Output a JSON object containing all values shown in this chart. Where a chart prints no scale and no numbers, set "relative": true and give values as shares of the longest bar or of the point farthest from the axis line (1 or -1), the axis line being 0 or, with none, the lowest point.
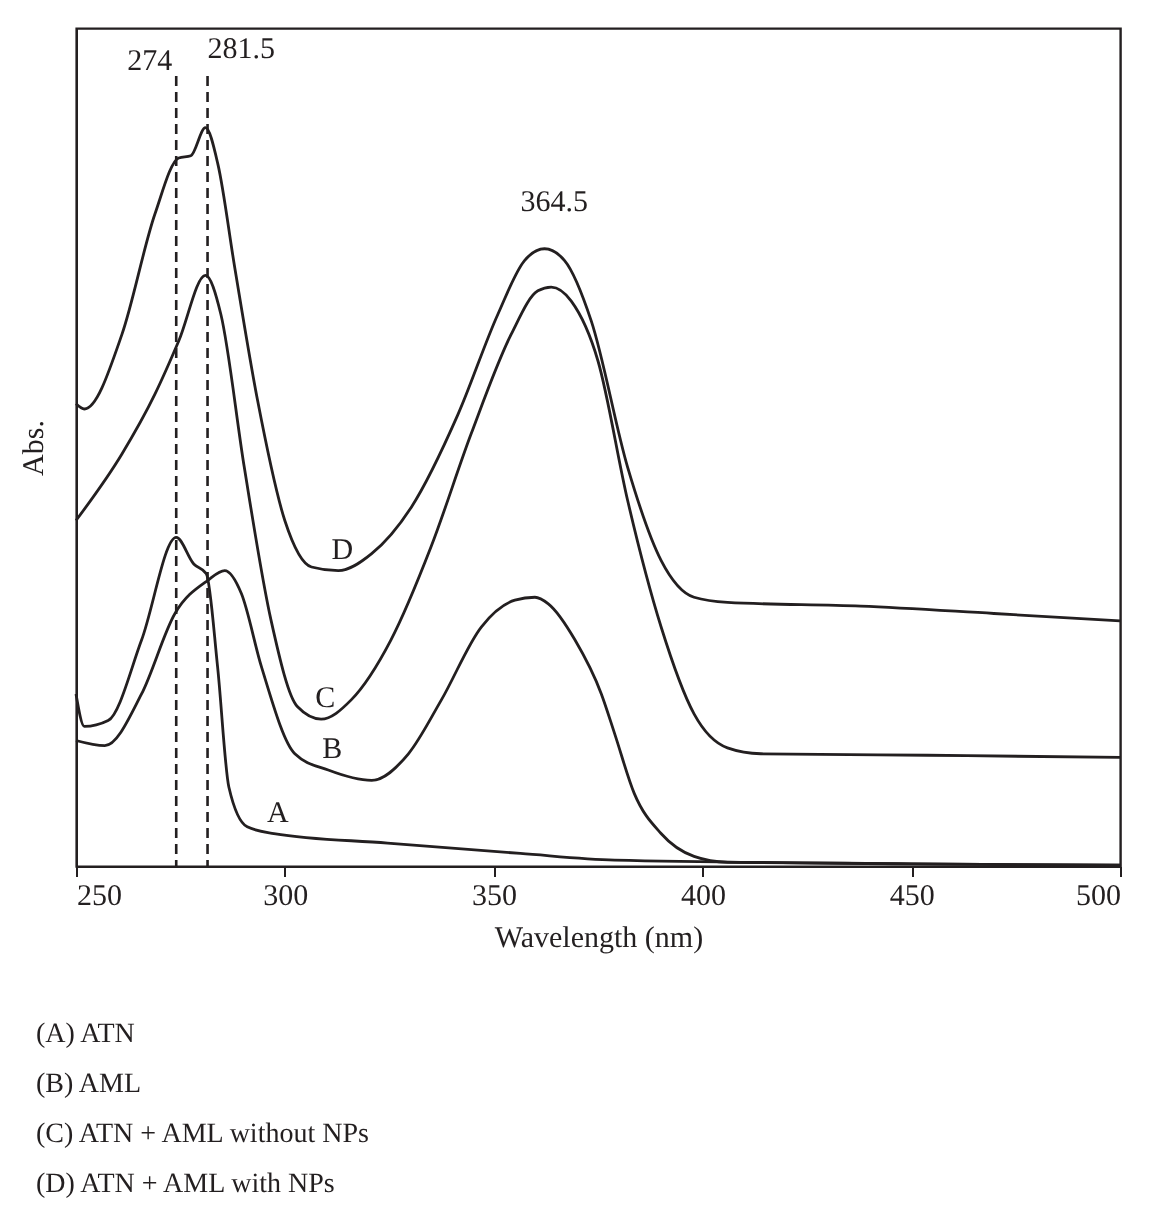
{
  "chart_data": {
    "type": "line",
    "relative": true,
    "xlabel": "Wavelength (nm)",
    "ylabel": "Abs.",
    "xlim": [
      250,
      500
    ],
    "xticks": [
      250,
      300,
      350,
      400,
      450,
      500
    ],
    "grid": false,
    "marker": "none",
    "line_style": "solid",
    "series": [
      {
        "name": "D",
        "color": "#231f20",
        "x": [
          250,
          252,
          261,
          268.9,
          274.6,
          277.5,
          281,
          284,
          288,
          293.5,
          300,
          306.4,
          312.8,
          320.8,
          330.3,
          341.5,
          351,
          357.4,
          362.2,
          367,
          373.4,
          382.1,
          390.1,
          398,
          406,
          437.9,
          469.8,
          500
        ],
        "values": [
          0.626,
          0.619,
          0.72,
          0.883,
          0.959,
          0.962,
          1.0,
          0.95,
          0.811,
          0.63,
          0.468,
          0.405,
          0.4,
          0.423,
          0.486,
          0.612,
          0.747,
          0.82,
          0.836,
          0.82,
          0.738,
          0.54,
          0.414,
          0.364,
          0.357,
          0.352,
          0.342,
          0.332
        ]
      },
      {
        "name": "C",
        "color": "#231f20",
        "x": [
          250,
          261,
          268.9,
          274.6,
          281,
          284.7,
          290.3,
          296.7,
          303,
          308.7,
          315.9,
          325.4,
          335,
          344.6,
          354.2,
          360.6,
          363.8,
          368.6,
          375,
          382.1,
          390.1,
          398,
          406,
          414,
          453.9,
          500
        ],
        "values": [
          0.468,
          0.558,
          0.639,
          0.711,
          0.8,
          0.747,
          0.54,
          0.333,
          0.216,
          0.199,
          0.225,
          0.306,
          0.432,
          0.585,
          0.72,
          0.779,
          0.784,
          0.765,
          0.684,
          0.495,
          0.324,
          0.206,
          0.16,
          0.152,
          0.15,
          0.147
        ]
      },
      {
        "name": "B",
        "color": "#231f20",
        "x": [
          250,
          256.9,
          265.7,
          273.7,
          281.6,
          285.6,
          289.6,
          294.4,
          302.4,
          310.4,
          320.8,
          329.6,
          337.5,
          347.1,
          355.1,
          359.9,
          363.1,
          369.5,
          375.8,
          379,
          383.7,
          390.1,
          398,
          406,
          450,
          500
        ],
        "values": [
          0.17,
          0.163,
          0.233,
          0.342,
          0.387,
          0.4,
          0.369,
          0.27,
          0.152,
          0.13,
          0.116,
          0.152,
          0.225,
          0.324,
          0.36,
          0.364,
          0.355,
          0.306,
          0.233,
          0.179,
          0.098,
          0.044,
          0.013,
          0.005,
          0.003,
          0.001
        ]
      },
      {
        "name": "A",
        "color": "#231f20",
        "x": [
          250,
          252,
          257.7,
          265.7,
          274,
          278.2,
          281.2,
          283.9,
          286.6,
          291,
          297.4,
          324.6,
          356.4,
          379,
          450,
          500
        ],
        "values": [
          0.233,
          0.189,
          0.197,
          0.306,
          0.445,
          0.409,
          0.396,
          0.27,
          0.107,
          0.053,
          0.044,
          0.031,
          0.017,
          0.008,
          0.003,
          0.001
        ]
      }
    ],
    "ref_lines": [
      {
        "axis": "x",
        "value": 274,
        "label": "274",
        "color": "#231f20",
        "line_style": "dashed"
      },
      {
        "axis": "x",
        "value": 281.5,
        "label": "281.5",
        "color": "#231f20",
        "line_style": "dashed"
      }
    ],
    "annotations": [
      {
        "text": "364.5",
        "x": 364.5,
        "y": 0.836
      },
      "(A) ATN",
      "(B) AML",
      "(C) ATN + AML without NPs",
      "(D) ATN + AML with NPs"
    ]
  }
}
